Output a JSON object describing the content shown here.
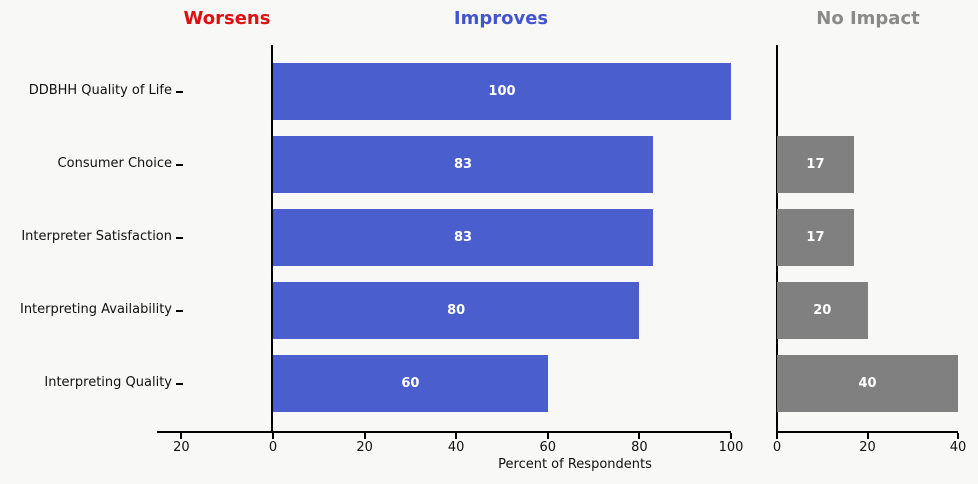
{
  "figure": {
    "background": "#f8f8f7"
  },
  "headers": [
    {
      "label": "Worsens",
      "color": "#dd1111"
    },
    {
      "label": "Improves",
      "color": "#4355cb"
    },
    {
      "label": "No Impact",
      "color": "#8a8a8a"
    }
  ],
  "chart_data": {
    "type": "bar",
    "orientation": "horizontal",
    "title": "",
    "xlabel": "Percent of Respondents",
    "categories": [
      "DDBHH Quality of Life",
      "Consumer Choice",
      "Interpreter Satisfaction",
      "Interpreting Availability",
      "Interpreting Quality"
    ],
    "series": [
      {
        "name": "Worsens",
        "bar_color": "#dd1111",
        "values": [
          0,
          0,
          0,
          0,
          0
        ]
      },
      {
        "name": "Improves",
        "bar_color": "#4a5ecd",
        "values": [
          100,
          83,
          83,
          80,
          60
        ]
      },
      {
        "name": "No Impact",
        "bar_color": "#808080",
        "values": [
          0,
          17,
          17,
          20,
          40
        ]
      }
    ],
    "value_labels": true,
    "grid": false,
    "legend_position": "column headers above panels",
    "axes": {
      "main": {
        "xlim": [
          -25,
          100
        ],
        "ticks": [
          -20,
          0,
          20,
          40,
          60,
          80,
          100
        ],
        "tick_labels": [
          "20",
          "0",
          "20",
          "40",
          "60",
          "80",
          "100"
        ]
      },
      "no_impact": {
        "xlim": [
          0,
          40
        ],
        "ticks": [
          0,
          20,
          40
        ],
        "tick_labels": [
          "0",
          "20",
          "40"
        ]
      }
    }
  }
}
